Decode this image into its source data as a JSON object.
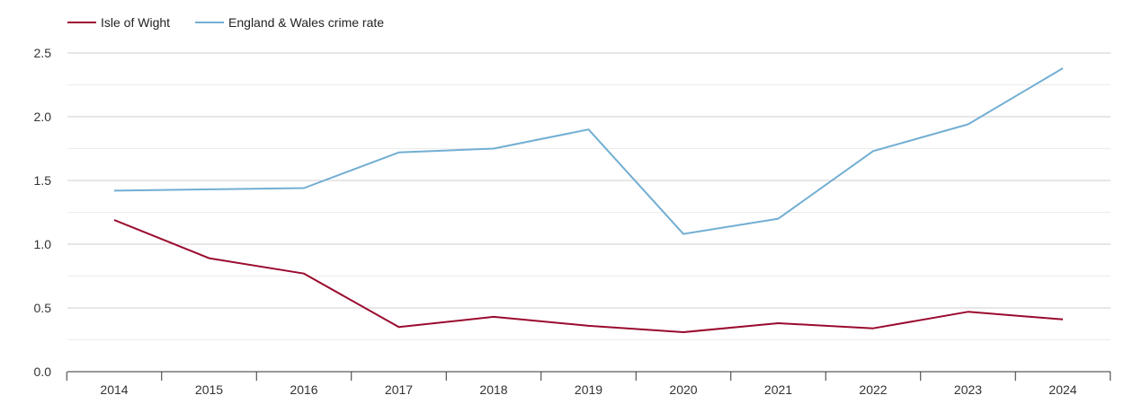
{
  "chart_data": {
    "type": "line",
    "title": "",
    "xlabel": "",
    "ylabel": "",
    "x": [
      "2014",
      "2015",
      "2016",
      "2017",
      "2018",
      "2019",
      "2020",
      "2021",
      "2022",
      "2023",
      "2024"
    ],
    "ylim": [
      0,
      2.5
    ],
    "yticks": [
      "0.0",
      "0.5",
      "1.0",
      "1.5",
      "2.0",
      "2.5"
    ],
    "grid": true,
    "legend_position": "top-left",
    "series": [
      {
        "name": "Isle of Wight",
        "color": "#9a0a2e",
        "values": [
          1.19,
          0.89,
          0.77,
          0.35,
          0.43,
          0.36,
          0.31,
          0.38,
          0.34,
          0.47,
          0.41
        ]
      },
      {
        "name": "England & Wales crime rate",
        "color": "#72aed3",
        "values": [
          1.42,
          1.43,
          1.44,
          1.72,
          1.75,
          1.9,
          1.08,
          1.2,
          1.73,
          1.94,
          2.38
        ]
      }
    ]
  }
}
